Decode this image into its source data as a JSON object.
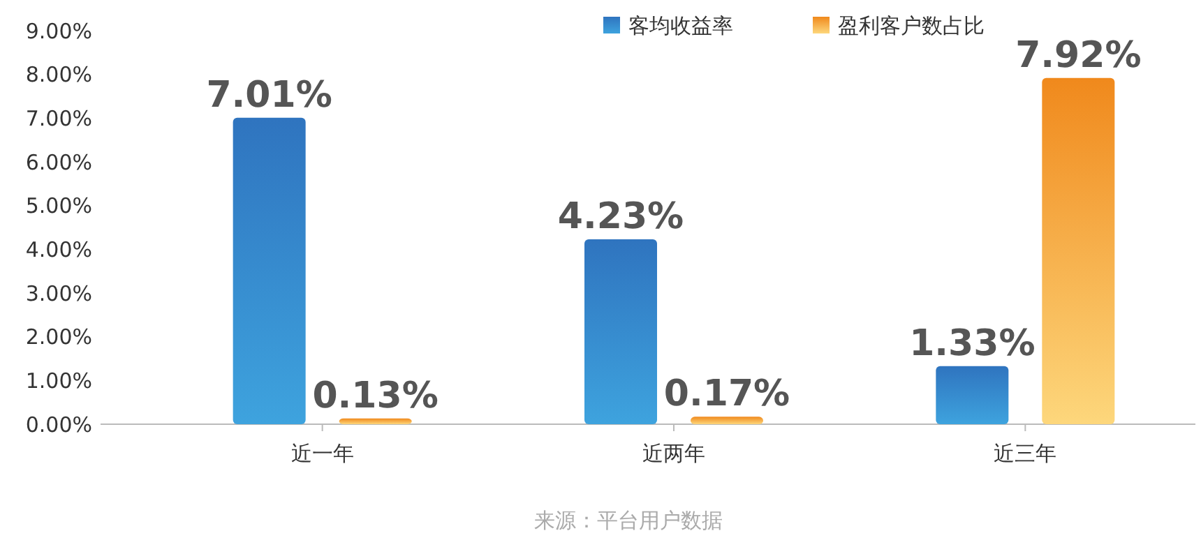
{
  "chart_data": {
    "type": "bar",
    "categories": [
      "近一年",
      "近两年",
      "近三年"
    ],
    "series": [
      {
        "name": "客均收益率",
        "color": "#2f74bf",
        "values": [
          7.01,
          4.23,
          1.33
        ]
      },
      {
        "name": "盈利客户数占比",
        "color": "#f0891c",
        "values": [
          0.13,
          0.17,
          7.92
        ]
      }
    ],
    "ylim": [
      0,
      9
    ],
    "yticks": [
      {
        "value": 0,
        "label": "0.00%"
      },
      {
        "value": 1,
        "label": "1.00%"
      },
      {
        "value": 2,
        "label": "2.00%"
      },
      {
        "value": 3,
        "label": "3.00%"
      },
      {
        "value": 4,
        "label": "4.00%"
      },
      {
        "value": 5,
        "label": "5.00%"
      },
      {
        "value": 6,
        "label": "6.00%"
      },
      {
        "value": 7,
        "label": "7.00%"
      },
      {
        "value": 8,
        "label": "8.00%"
      },
      {
        "value": 9,
        "label": "9.00%"
      }
    ],
    "value_labels": [
      [
        "7.01%",
        "4.23%",
        "1.33%"
      ],
      [
        "0.13%",
        "0.17%",
        "7.92%"
      ]
    ],
    "grid": false,
    "legend": "top right",
    "annotations": [
      "来源：平台用户数据"
    ]
  }
}
